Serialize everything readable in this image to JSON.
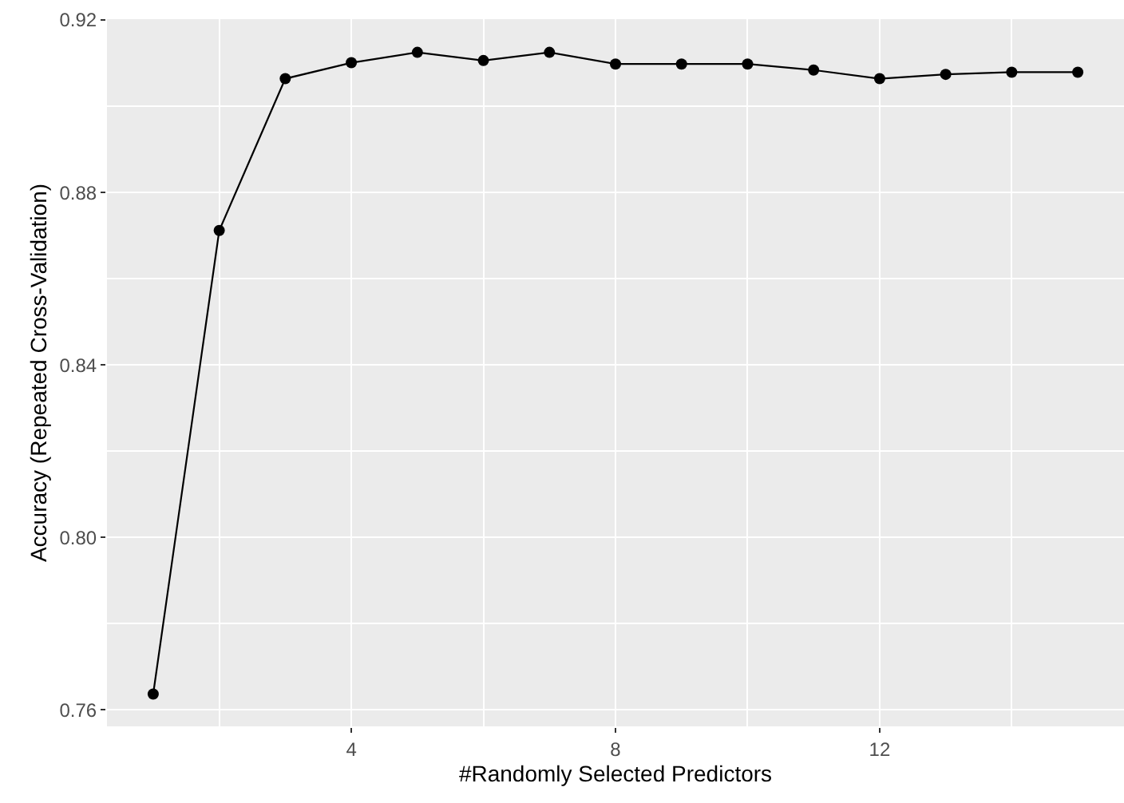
{
  "chart_data": {
    "type": "line",
    "xlabel": "#Randomly Selected Predictors",
    "ylabel": "Accuracy (Repeated Cross-Validation)",
    "x": [
      1,
      2,
      3,
      4,
      5,
      6,
      7,
      8,
      9,
      10,
      11,
      12,
      13,
      14,
      15
    ],
    "series": [
      {
        "color": "#000000",
        "values": [
          0.7637,
          0.8712,
          0.9064,
          0.9101,
          0.9125,
          0.9106,
          0.9125,
          0.9098,
          0.9098,
          0.9098,
          0.9084,
          0.9064,
          0.9074,
          0.9079,
          0.9079
        ]
      }
    ],
    "xlim": [
      0.3,
      15.7
    ],
    "ylim": [
      0.7562,
      0.9202
    ],
    "xticks": [
      4,
      8,
      12
    ],
    "yticks": [
      {
        "value": 0.76,
        "label": "0.76"
      },
      {
        "value": 0.8,
        "label": "0.80"
      },
      {
        "value": 0.84,
        "label": "0.84"
      },
      {
        "value": 0.88,
        "label": "0.88"
      },
      {
        "value": 0.92,
        "label": "0.92"
      }
    ],
    "grid": true,
    "marker": "circle",
    "line_style": "solid"
  }
}
